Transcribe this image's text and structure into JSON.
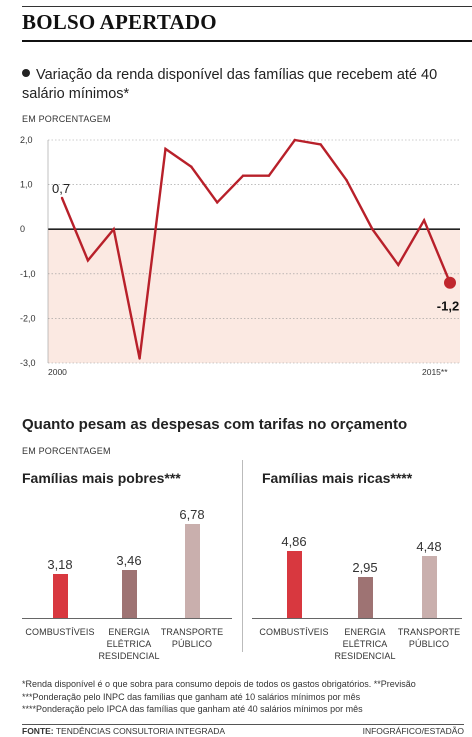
{
  "header": {
    "title": "BOLSO APERTADO"
  },
  "line_section": {
    "subtitle": "Variação da renda disponível das famílias que recebem até 40 salário mínimos*",
    "unit": "EM PORCENTAGEM"
  },
  "bar_section": {
    "title": "Quanto pesam as despesas com tarifas no orçamento",
    "unit": "EM PORCENTAGEM"
  },
  "chart_data": [
    {
      "type": "line",
      "x_start_label": "2000",
      "x_end_label": "2015**",
      "y": [
        0.7,
        -0.7,
        0.0,
        -2.9,
        1.8,
        1.4,
        0.6,
        1.2,
        1.2,
        2.0,
        1.9,
        1.1,
        0.0,
        -0.8,
        0.2,
        -1.2
      ],
      "ylim": [
        -3.0,
        2.0
      ],
      "yticks": [
        "2,0",
        "1,0",
        "0",
        "-1,0",
        "-2,0",
        "-3,0"
      ],
      "annotations": {
        "first": "0,7",
        "last": "-1,2"
      },
      "colors": {
        "line": "#b8202a",
        "negative_fill": "#fbe9e2",
        "marker": "#c0272d"
      }
    },
    {
      "type": "bar",
      "title": "Famílias mais pobres***",
      "categories": [
        "COMBUSTÍVEIS",
        "ENERGIA ELÉTRICA RESIDENCIAL",
        "TRANSPORTE PÚBLICO"
      ],
      "category_lines": [
        [
          "COMBUSTÍVEIS"
        ],
        [
          "ENERGIA",
          "ELÉTRICA",
          "RESIDENCIAL"
        ],
        [
          "TRANSPORTE",
          "PÚBLICO"
        ]
      ],
      "values": [
        3.18,
        3.46,
        6.78
      ],
      "value_labels": [
        "3,18",
        "3,46",
        "6,78"
      ],
      "colors": [
        "#d8383f",
        "#9e7373",
        "#c9afad"
      ]
    },
    {
      "type": "bar",
      "title": "Famílias mais ricas****",
      "categories": [
        "COMBUSTÍVEIS",
        "ENERGIA ELÉTRICA RESIDENCIAL",
        "TRANSPORTE PÚBLICO"
      ],
      "category_lines": [
        [
          "COMBUSTÍVEIS"
        ],
        [
          "ENERGIA",
          "ELÉTRICA",
          "RESIDENCIAL"
        ],
        [
          "TRANSPORTE",
          "PÚBLICO"
        ]
      ],
      "values": [
        4.86,
        2.95,
        4.48
      ],
      "value_labels": [
        "4,86",
        "2,95",
        "4,48"
      ],
      "colors": [
        "#d8383f",
        "#9e7373",
        "#c9afad"
      ]
    }
  ],
  "footnotes": [
    "*Renda disponível é o que sobra para consumo depois de todos os gastos obrigatórios. **Previsão",
    "***Ponderação pelo INPC das famílias que ganham até 10 salários mínimos por mês",
    "****Ponderação pelo IPCA das famílias que ganham até 40 salários mínimos por mês"
  ],
  "footer": {
    "source_label": "FONTE:",
    "source_text": "TENDÊNCIAS CONSULTORIA INTEGRADA",
    "credit": "INFOGRÁFICO/ESTADÃO"
  }
}
